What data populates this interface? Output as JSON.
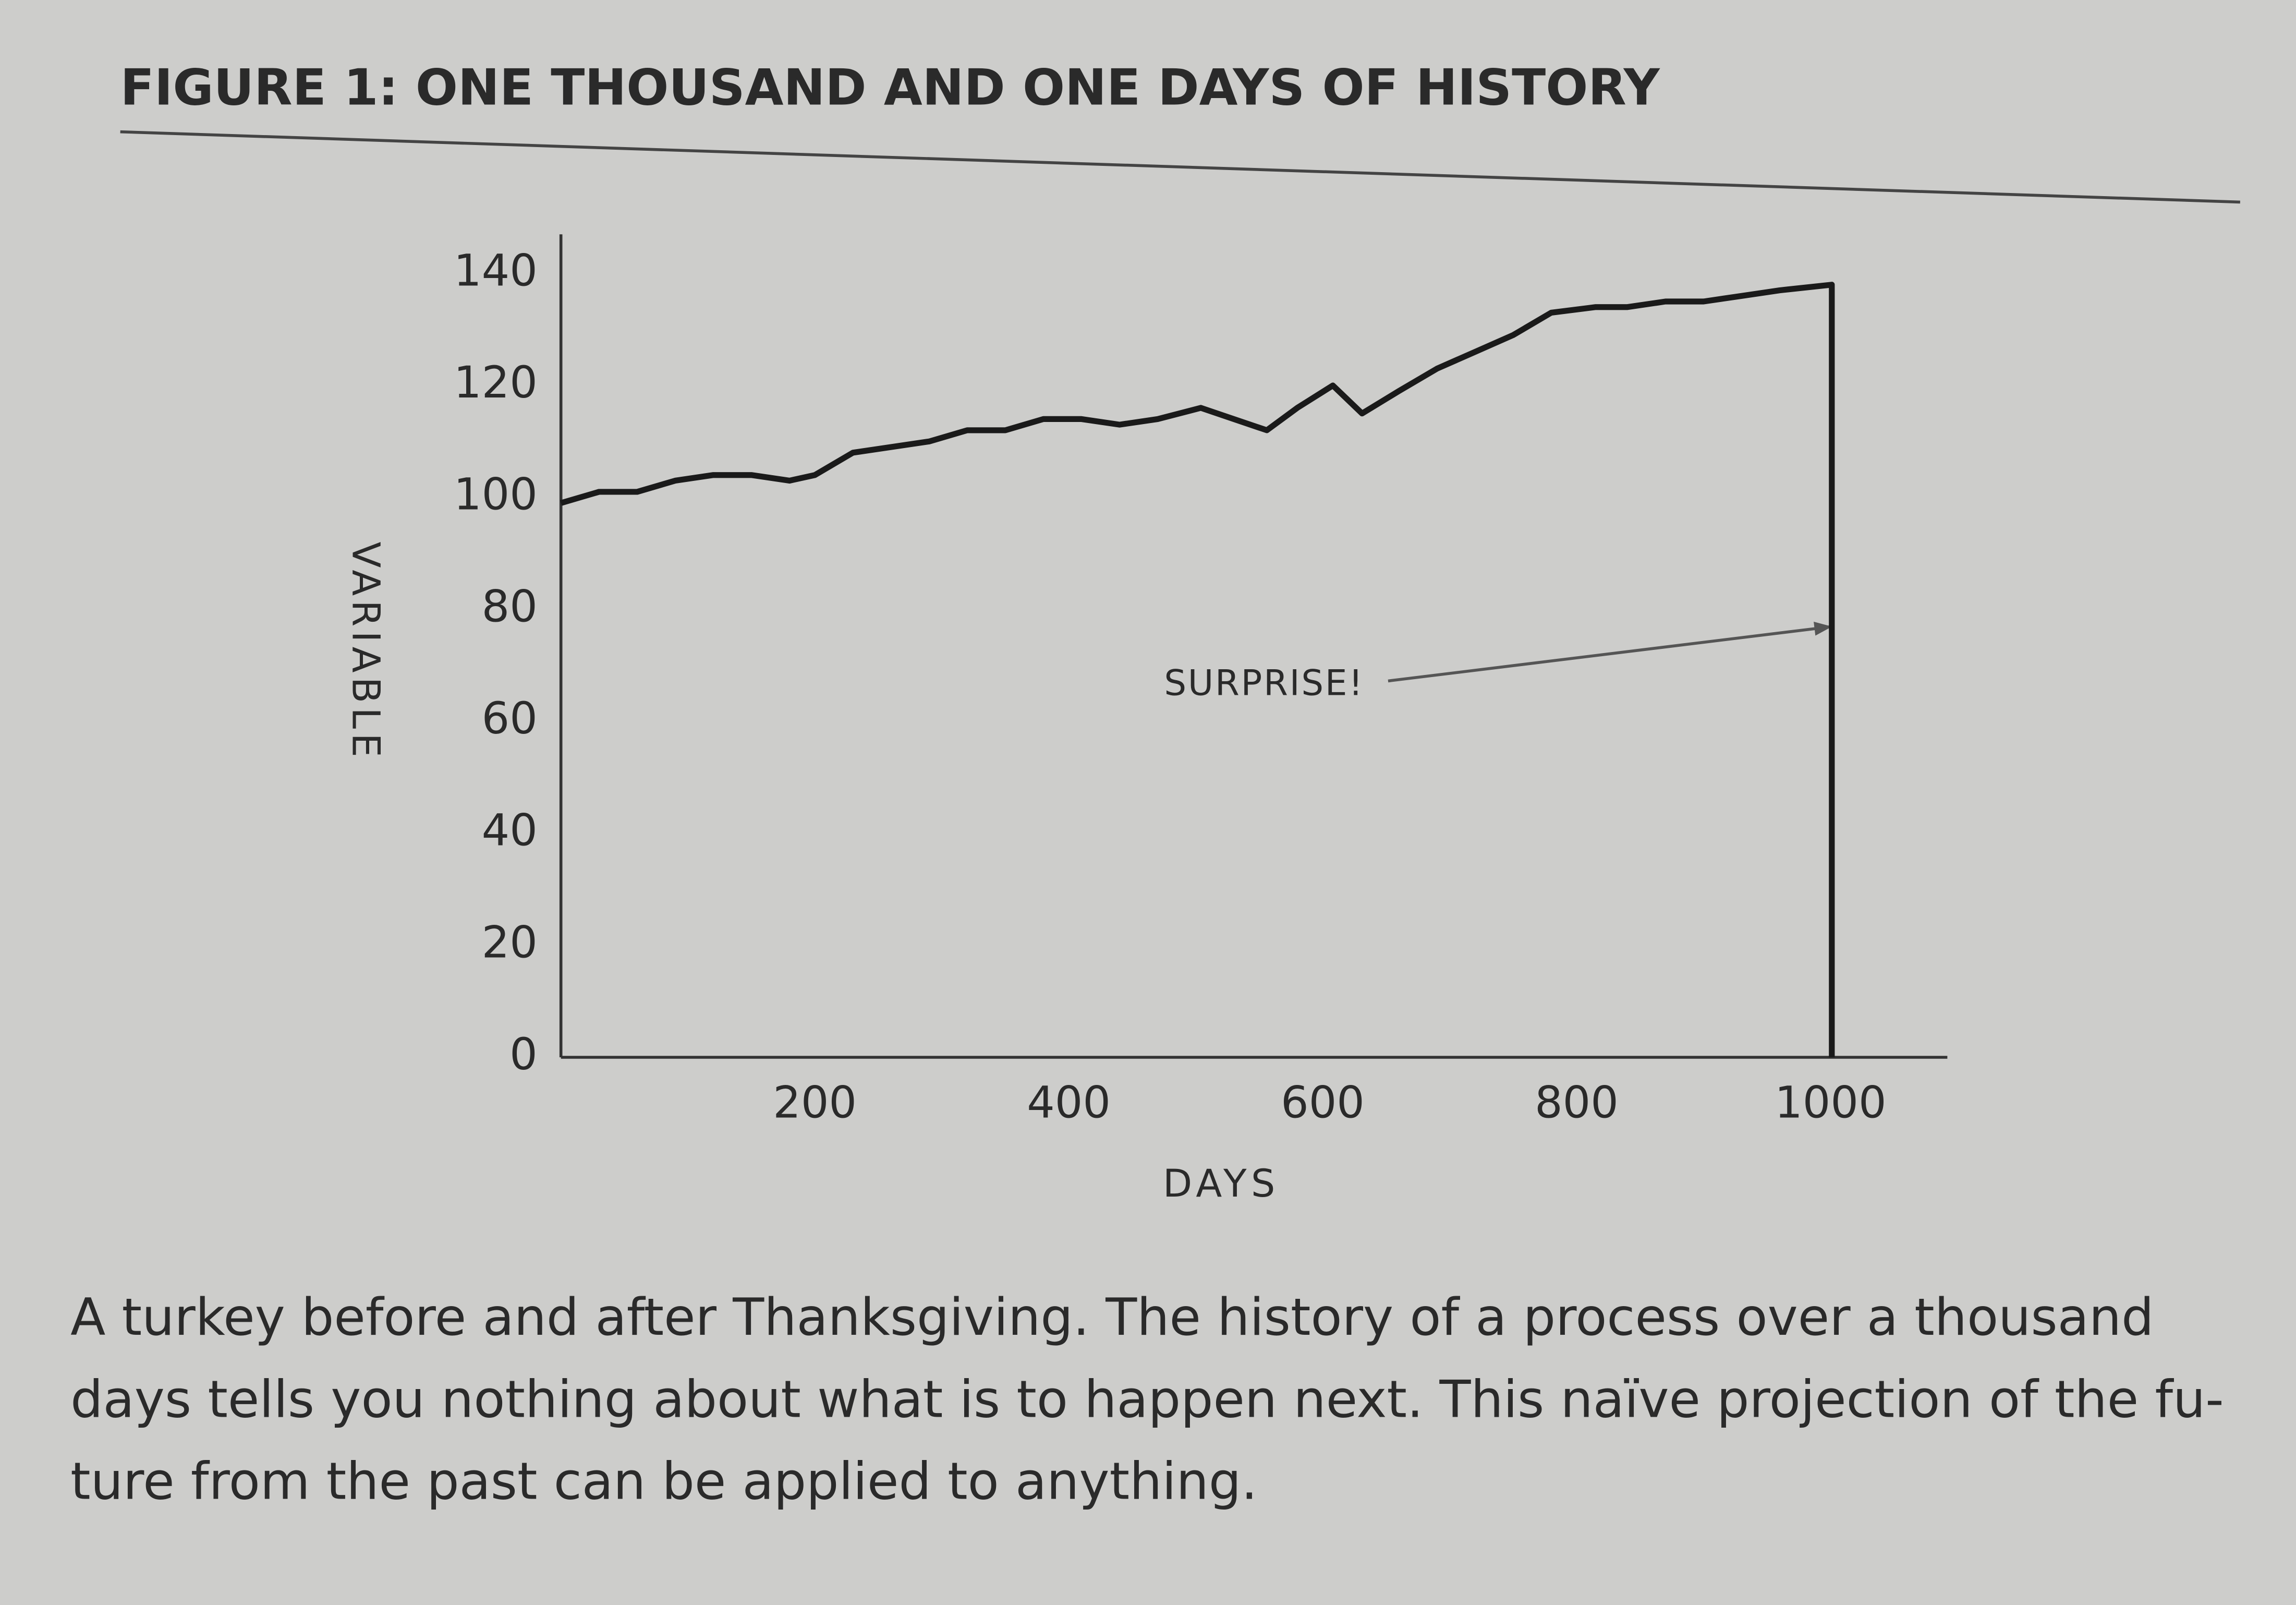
{
  "chart_data": {
    "type": "line",
    "title": "FIGURE 1: ONE THOUSAND AND ONE DAYS OF HISTORY",
    "x_label": "DAYS",
    "y_label": "VARIABLE",
    "annotation": "SURPRISE!",
    "x": [
      0,
      30,
      60,
      90,
      120,
      150,
      180,
      200,
      230,
      260,
      290,
      320,
      350,
      380,
      410,
      440,
      470,
      504,
      530,
      556,
      580,
      608,
      631,
      660,
      690,
      720,
      750,
      780,
      815,
      840,
      870,
      900,
      930,
      960,
      1001,
      1001
    ],
    "series": [
      {
        "name": null,
        "color": "#1a1a1a",
        "values": [
          99,
          101,
          101,
          103,
          104,
          104,
          103,
          104,
          108,
          109,
          110,
          112,
          112,
          114,
          114,
          113,
          114,
          116,
          114,
          112,
          116,
          120,
          115,
          119,
          123,
          126,
          129,
          133,
          134,
          134,
          135,
          135,
          136,
          137,
          138,
          0
        ]
      }
    ],
    "xlim": [
      0,
      1092
    ],
    "xticks": [
      200,
      400,
      600,
      800,
      1000
    ],
    "ylim": [
      0,
      147
    ],
    "yticks": [
      0,
      20,
      40,
      60,
      80,
      100,
      120,
      140
    ],
    "grid": false
  },
  "caption": [
    "A turkey before and after Thanksgiving. The history of a process over a thousand",
    "days tells you nothing about what is to happen next. This naïve projection of the fu-",
    "ture from the past can be applied to anything."
  ]
}
